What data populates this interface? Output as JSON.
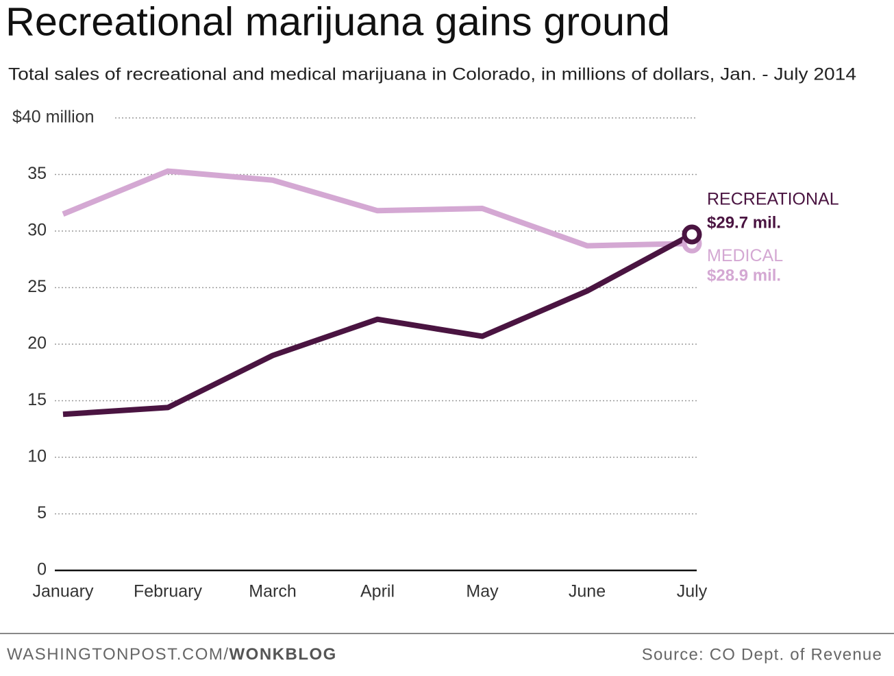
{
  "chart_data": {
    "type": "line",
    "title": "Recreational marijuana gains ground",
    "subtitle": "Total sales of recreational and medical marijuana in Colorado, in millions of dollars, Jan. - July 2014",
    "categories": [
      "January",
      "February",
      "March",
      "April",
      "May",
      "June",
      "July"
    ],
    "series": [
      {
        "name": "RECREATIONAL",
        "color": "#4a1441",
        "values": [
          13.8,
          14.4,
          19.0,
          22.2,
          20.7,
          24.7,
          29.7
        ],
        "value_labels": [
          null,
          null,
          null,
          null,
          null,
          null,
          "$29.7 mil."
        ]
      },
      {
        "name": "MEDICAL",
        "color": "#d4a8d3",
        "values": [
          31.5,
          35.3,
          34.5,
          31.8,
          32.0,
          28.7,
          28.9
        ],
        "value_labels": [
          null,
          null,
          null,
          null,
          null,
          null,
          "$28.9 mil."
        ]
      }
    ],
    "ylim": [
      0,
      40
    ],
    "yticks": [
      0,
      5,
      10,
      15,
      20,
      25,
      30,
      35,
      {
        "value": 40,
        "label": "$40 million"
      }
    ],
    "grid": true,
    "footer": {
      "site": "WASHINGTONPOST.COM/",
      "blog": "WONKBLOG",
      "source": "Source: CO Dept. of Revenue"
    }
  }
}
